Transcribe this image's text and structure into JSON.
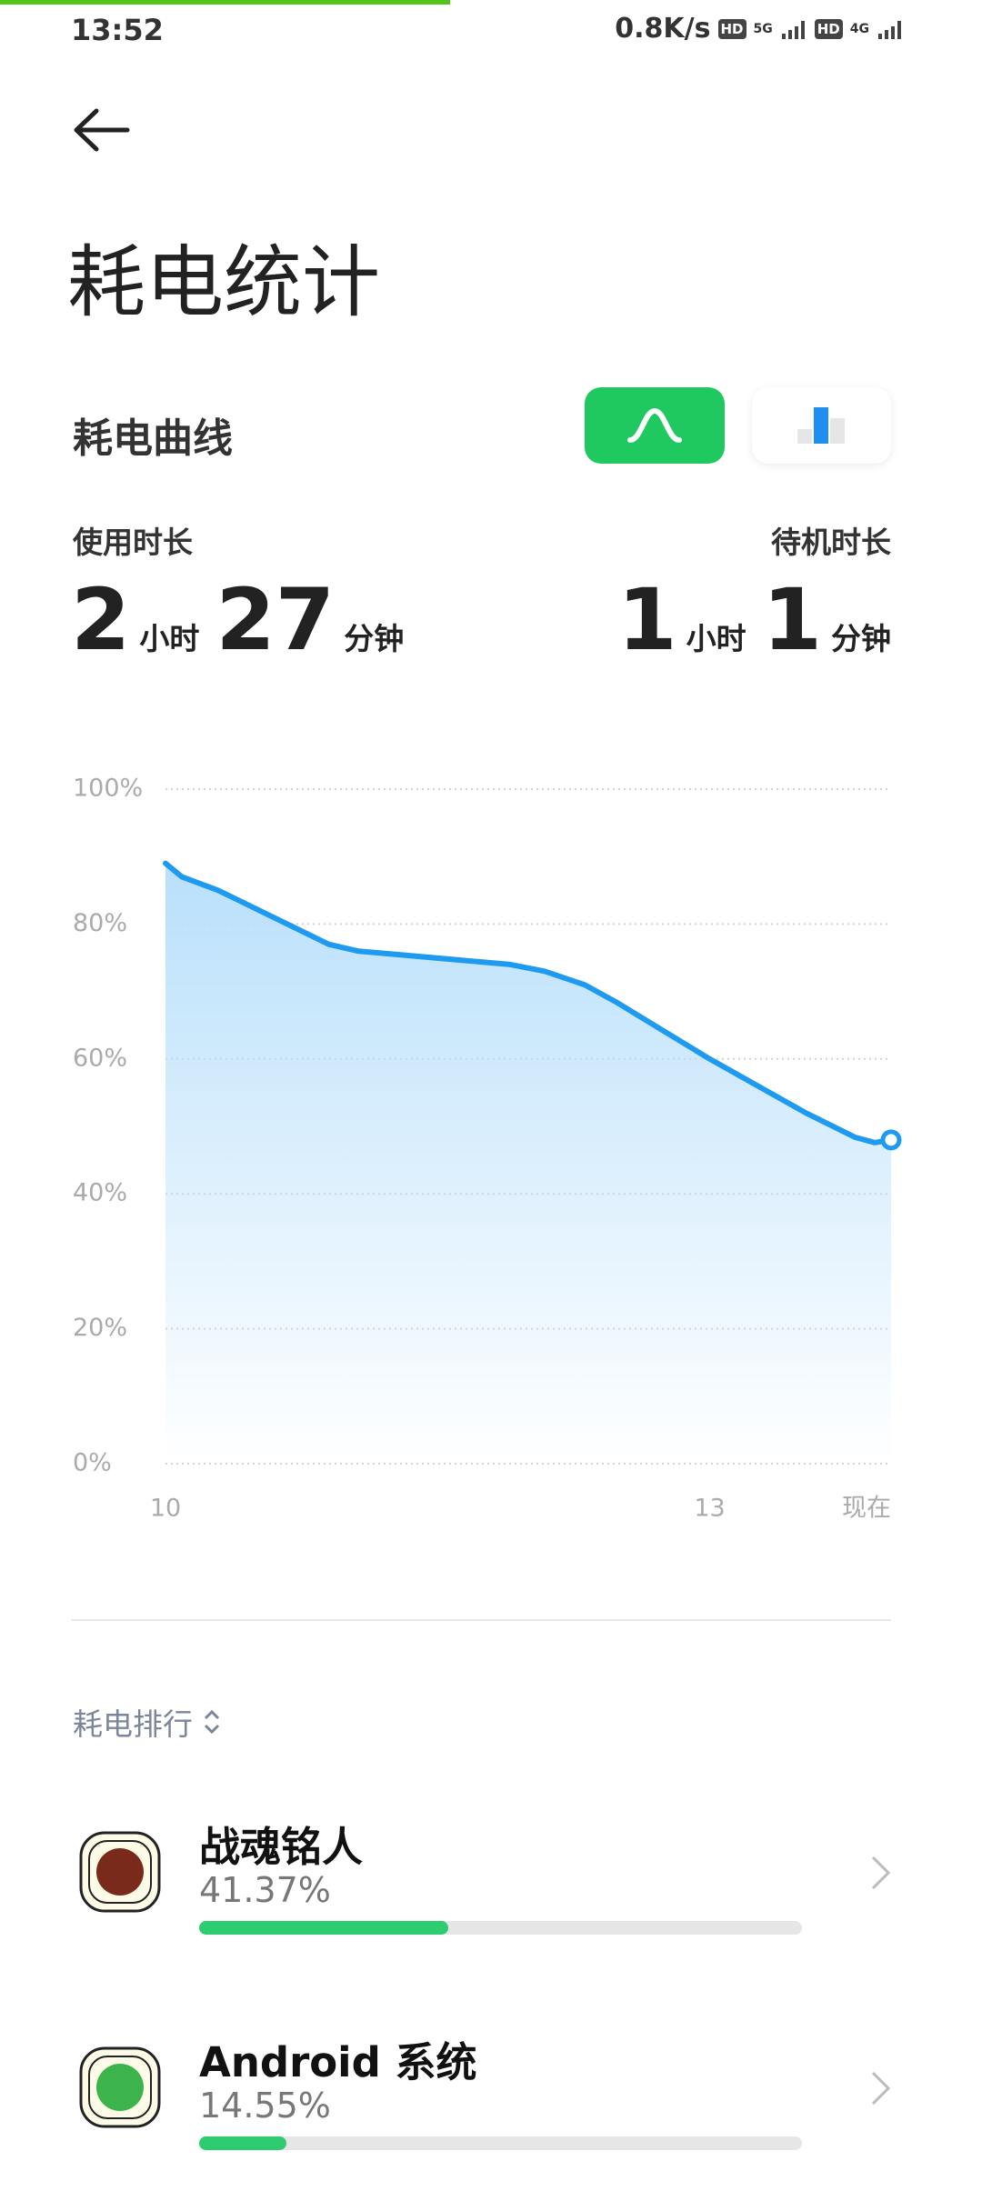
{
  "status_bar": {
    "time": "13:52",
    "speed": "0.8K/s",
    "hd1": "HD",
    "net1": "5G",
    "hd2": "HD",
    "net2": "4G"
  },
  "header": {
    "title": "耗电统计"
  },
  "section": {
    "title": "耗电曲线"
  },
  "summary": {
    "usage": {
      "label": "使用时长",
      "hours": "2",
      "hour_unit": "小时",
      "minutes": "27",
      "minute_unit": "分钟"
    },
    "standby": {
      "label": "待机时长",
      "hours": "1",
      "hour_unit": "小时",
      "minutes": "1",
      "minute_unit": "分钟"
    }
  },
  "chart_data": {
    "type": "area",
    "x": [
      10.0,
      10.09,
      10.29,
      10.9,
      11.06,
      11.9,
      12.09,
      12.31,
      12.48,
      13.0,
      13.53,
      13.8,
      13.91,
      14.0
    ],
    "values": [
      89,
      87,
      85,
      77,
      76,
      74,
      73,
      71,
      68.5,
      60,
      52,
      48.4,
      47.6,
      48
    ],
    "color": "#1e9bf0",
    "xlim": [
      10,
      14
    ],
    "xticks": [
      10,
      13,
      {
        "value": 14,
        "label": "现在"
      }
    ],
    "ylim": [
      0,
      100
    ],
    "yticks": [
      {
        "value": 0,
        "label": "0%"
      },
      {
        "value": 20,
        "label": "20%"
      },
      {
        "value": 40,
        "label": "40%"
      },
      {
        "value": 60,
        "label": "60%"
      },
      {
        "value": 80,
        "label": "80%"
      },
      {
        "value": 100,
        "label": "100%"
      }
    ],
    "grid": true
  },
  "ranking": {
    "title": "耗电排行",
    "items": [
      {
        "name": "战魂铭人",
        "share": 41.37,
        "share_label": "41.37%"
      },
      {
        "name": "Android 系统",
        "share": 14.55,
        "share_label": "14.55%"
      }
    ]
  }
}
